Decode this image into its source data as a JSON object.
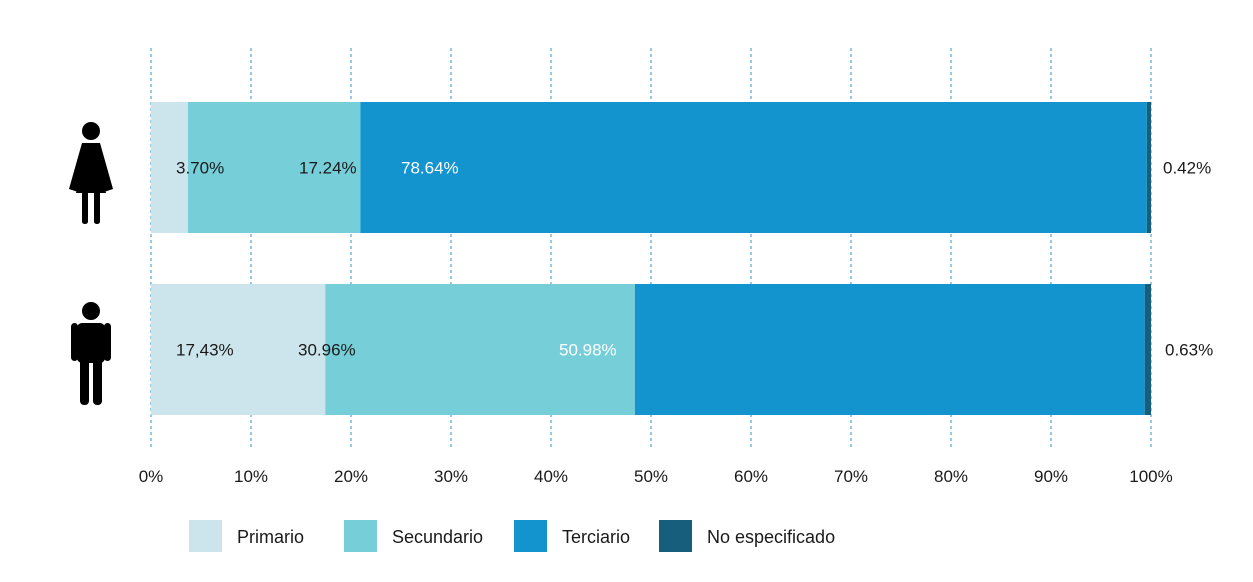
{
  "chart_data": {
    "type": "bar",
    "orientation": "horizontal",
    "stacked": true,
    "categories": [
      "female",
      "male"
    ],
    "category_icons": [
      "female-figure-icon",
      "male-figure-icon"
    ],
    "series": [
      {
        "name": "Primario",
        "color": "#cce5ec",
        "values": [
          3.7,
          17.43
        ],
        "labels": [
          "3.70%",
          "17,43%"
        ],
        "label_color": "#1a1a1a"
      },
      {
        "name": "Secundario",
        "color": "#76ced9",
        "values": [
          17.24,
          30.96
        ],
        "labels": [
          "17.24%",
          "30.96%"
        ],
        "label_color": "#1a1a1a"
      },
      {
        "name": "Terciario",
        "color": "#1494cf",
        "values": [
          78.64,
          50.98
        ],
        "labels": [
          "78.64%",
          "50.98%"
        ],
        "label_color": "#ffffff"
      },
      {
        "name": "No especificado",
        "color": "#155f7c",
        "values": [
          0.42,
          0.63
        ],
        "labels": [
          "0.42%",
          "0.63%"
        ],
        "label_color": "#1a1a1a"
      }
    ],
    "xlim": [
      0,
      100
    ],
    "xticks": [
      "0%",
      "10%",
      "20%",
      "30%",
      "40%",
      "50%",
      "60%",
      "70%",
      "80%",
      "90%",
      "100%"
    ],
    "grid": "vertical dashed",
    "legend_position": "bottom-left",
    "title": "",
    "xlabel": "",
    "ylabel": ""
  }
}
